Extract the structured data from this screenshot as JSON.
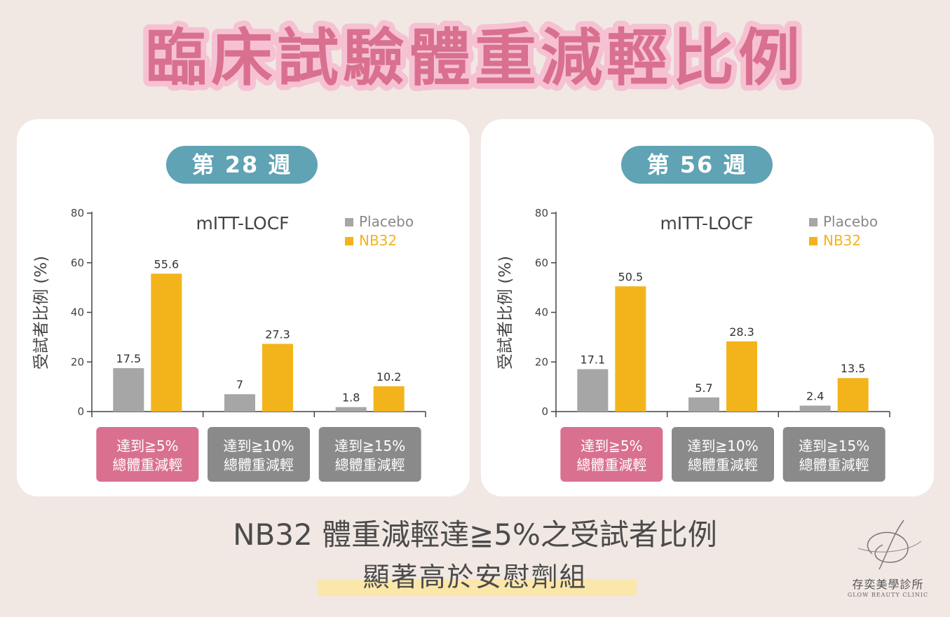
{
  "title": "臨床試驗體重減輕比例",
  "colors": {
    "background": "#f1e8e4",
    "title_fill": "#d9708f",
    "title_outline": "#f6c2d3",
    "pill": "#5fa3b4",
    "placebo": "#a6a6a6",
    "nb32": "#f3b41b",
    "category_highlight": "#d9708f",
    "category_default": "#8a8a8a",
    "highlight_bar": "#fbe7aa"
  },
  "chart_data": [
    {
      "type": "bar",
      "week_label": "第 28 週",
      "title": "mITT-LOCF",
      "ylabel": "受試者比例 (%)",
      "ylim": [
        0,
        80
      ],
      "yticks": [
        0,
        20,
        40,
        60,
        80
      ],
      "categories": [
        "達到≧5%\n總體重減輕",
        "達到≧10%\n總體重減輕",
        "達到≧15%\n總體重減輕"
      ],
      "series": [
        {
          "name": "Placebo",
          "values": [
            17.5,
            7,
            1.8
          ],
          "labels": [
            "17.5",
            "7",
            "1.8"
          ]
        },
        {
          "name": "NB32",
          "values": [
            55.6,
            27.3,
            10.2
          ],
          "labels": [
            "55.6",
            "27.3",
            "10.2"
          ]
        }
      ],
      "legend": "top-right",
      "grid": false
    },
    {
      "type": "bar",
      "week_label": "第 56 週",
      "title": "mITT-LOCF",
      "ylabel": "受試者比例 (%)",
      "ylim": [
        0,
        80
      ],
      "yticks": [
        0,
        20,
        40,
        60,
        80
      ],
      "categories": [
        "達到≧5%\n總體重減輕",
        "達到≧10%\n總體重減輕",
        "達到≧15%\n總體重減輕"
      ],
      "series": [
        {
          "name": "Placebo",
          "values": [
            17.1,
            5.7,
            2.4
          ],
          "labels": [
            "17.1",
            "5.7",
            "2.4"
          ]
        },
        {
          "name": "NB32",
          "values": [
            50.5,
            28.3,
            13.5
          ],
          "labels": [
            "50.5",
            "28.3",
            "13.5"
          ]
        }
      ],
      "legend": "top-right",
      "grid": false
    }
  ],
  "conclusion": {
    "line1": "NB32 體重減輕達≧5%之受試者比例",
    "line2": "顯著高於安慰劑組"
  },
  "logo": {
    "name_zh": "存奕美學診所",
    "name_en": "GLOW BEAUTY CLINIC"
  }
}
